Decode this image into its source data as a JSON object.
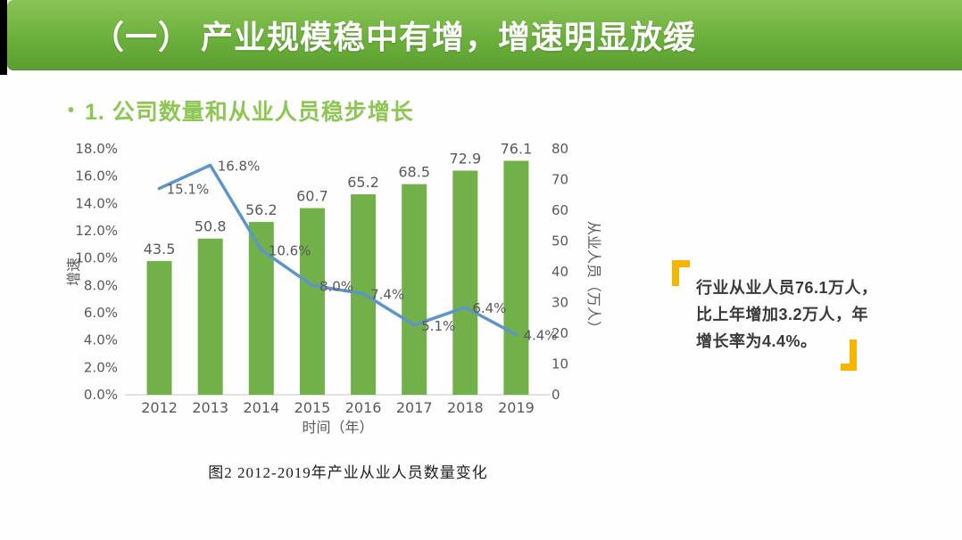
{
  "header": {
    "title": "（一） 产业规模稳中有增，增速明显放缓"
  },
  "subtitle": {
    "bullet": "•",
    "text": "1. 公司数量和从业人员稳步增长"
  },
  "callout": {
    "lines": [
      "行业从业人员76.1万人，",
      "比上年增加3.2万人，年",
      "增长率为4.4%。"
    ]
  },
  "chart_data": {
    "type": "bar+line",
    "categories": [
      "2012",
      "2013",
      "2014",
      "2015",
      "2016",
      "2017",
      "2018",
      "2019"
    ],
    "series": [
      {
        "name": "从业人员（万人）",
        "type": "bar",
        "axis": "right",
        "color": "#72B04A",
        "values": [
          43.5,
          50.8,
          56.2,
          60.7,
          65.2,
          68.5,
          72.9,
          76.1
        ],
        "labels": [
          "43.5",
          "50.8",
          "56.2",
          "60.7",
          "65.2",
          "68.5",
          "72.9",
          "76.1"
        ]
      },
      {
        "name": "增速",
        "type": "line",
        "axis": "left",
        "color": "#5E95C9",
        "values": [
          15.1,
          16.8,
          10.6,
          8.0,
          7.4,
          5.1,
          6.4,
          4.4
        ],
        "labels": [
          "15.1%",
          "16.8%",
          "10.6%",
          "8.0%",
          "7.4%",
          "5.1%",
          "6.4%",
          "4.4%"
        ]
      }
    ],
    "left_axis": {
      "title": "增速",
      "min": 0,
      "max": 18,
      "step": 2,
      "ticks": [
        "0.0%",
        "2.0%",
        "4.0%",
        "6.0%",
        "8.0%",
        "10.0%",
        "12.0%",
        "14.0%",
        "16.0%",
        "18.0%"
      ]
    },
    "right_axis": {
      "title": "从业人员（万人）",
      "min": 0,
      "max": 80,
      "step": 10,
      "ticks": [
        "0",
        "10",
        "20",
        "30",
        "40",
        "50",
        "60",
        "70",
        "80"
      ]
    },
    "xlabel": "时间（年）",
    "caption": "图2  2012-2019年产业从业人员数量变化",
    "legend": "none",
    "grid": "off"
  },
  "colors": {
    "banner_top": "#8AC457",
    "banner_bottom": "#5C9F31",
    "subtitle_green": "#8DC653",
    "bar_green": "#72B04A",
    "line_blue": "#5E95C9",
    "label_gray": "#595959",
    "quote_orange": "#F7B500",
    "strip_black": "#000000"
  }
}
